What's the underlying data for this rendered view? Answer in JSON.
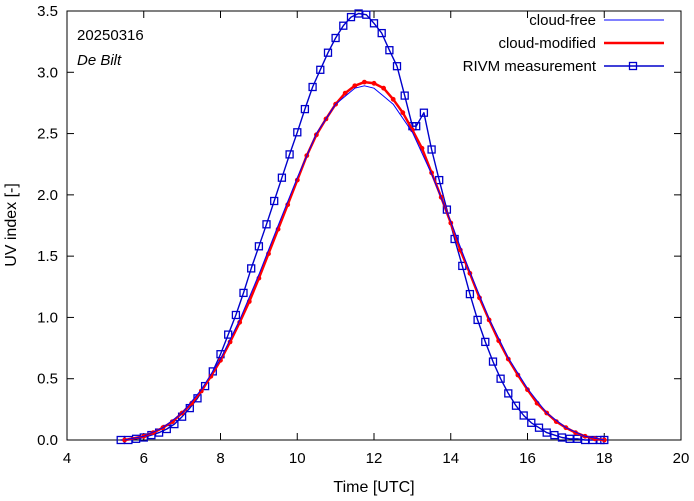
{
  "chart_data": {
    "type": "line",
    "title": "",
    "xlabel": "Time  [UTC]",
    "ylabel": "UV index  [-]",
    "xlim": [
      4,
      20
    ],
    "ylim": [
      0,
      3.5
    ],
    "xticks": [
      "4",
      "6",
      "8",
      "10",
      "12",
      "14",
      "16",
      "18",
      "20"
    ],
    "yticks": [
      "0.0",
      "0.5",
      "1.0",
      "1.5",
      "2.0",
      "2.5",
      "3.0",
      "3.5"
    ],
    "grid": false,
    "legend_position": "top-right",
    "annotations": {
      "date": "20250316",
      "location": "De Bilt"
    },
    "colors": {
      "cloud_free": "#0000ff",
      "cloud_modified": "#ff0000",
      "measurement": "#0000cc"
    },
    "series": [
      {
        "name": "cloud-free",
        "style": "line",
        "x": [
          5.5,
          6.0,
          6.5,
          7.0,
          7.5,
          8.0,
          8.5,
          9.0,
          9.5,
          10.0,
          10.5,
          11.0,
          11.5,
          11.75,
          12.0,
          12.5,
          13.0,
          13.5,
          14.0,
          14.5,
          15.0,
          15.5,
          16.0,
          16.5,
          17.0,
          17.5,
          18.0
        ],
        "values": [
          0.0,
          0.03,
          0.1,
          0.22,
          0.41,
          0.66,
          0.98,
          1.35,
          1.75,
          2.14,
          2.5,
          2.74,
          2.87,
          2.89,
          2.87,
          2.74,
          2.51,
          2.17,
          1.78,
          1.37,
          0.99,
          0.67,
          0.42,
          0.22,
          0.1,
          0.03,
          0.0
        ]
      },
      {
        "name": "cloud-modified",
        "style": "line-dots",
        "x": [
          5.5,
          6.0,
          6.25,
          6.5,
          6.75,
          7.0,
          7.25,
          7.5,
          7.75,
          8.0,
          8.25,
          8.5,
          8.75,
          9.0,
          9.25,
          9.5,
          9.75,
          10.0,
          10.25,
          10.5,
          10.75,
          11.0,
          11.25,
          11.5,
          11.75,
          12.0,
          12.25,
          12.5,
          12.75,
          13.0,
          13.25,
          13.5,
          13.75,
          14.0,
          14.25,
          14.5,
          14.75,
          15.0,
          15.25,
          15.5,
          15.75,
          16.0,
          16.25,
          16.5,
          16.75,
          17.0,
          17.25,
          17.5,
          17.75,
          18.0
        ],
        "values": [
          0.0,
          0.03,
          0.06,
          0.1,
          0.15,
          0.22,
          0.3,
          0.4,
          0.52,
          0.65,
          0.8,
          0.96,
          1.13,
          1.32,
          1.52,
          1.72,
          1.92,
          2.12,
          2.32,
          2.49,
          2.62,
          2.74,
          2.83,
          2.89,
          2.92,
          2.91,
          2.87,
          2.78,
          2.67,
          2.53,
          2.38,
          2.18,
          1.98,
          1.77,
          1.55,
          1.36,
          1.16,
          0.98,
          0.81,
          0.66,
          0.53,
          0.41,
          0.3,
          0.22,
          0.15,
          0.1,
          0.06,
          0.03,
          0.01,
          0.0
        ]
      },
      {
        "name": "RIVM measurement",
        "style": "line-squares",
        "x": [
          5.4,
          5.6,
          5.8,
          6.0,
          6.2,
          6.4,
          6.6,
          6.8,
          7.0,
          7.2,
          7.4,
          7.6,
          7.8,
          8.0,
          8.2,
          8.4,
          8.6,
          8.8,
          9.0,
          9.2,
          9.4,
          9.6,
          9.8,
          10.0,
          10.2,
          10.4,
          10.6,
          10.8,
          11.0,
          11.2,
          11.4,
          11.6,
          11.8,
          12.0,
          12.2,
          12.4,
          12.6,
          12.8,
          13.0,
          13.1,
          13.3,
          13.5,
          13.7,
          13.9,
          14.1,
          14.3,
          14.5,
          14.7,
          14.9,
          15.1,
          15.3,
          15.5,
          15.7,
          15.9,
          16.1,
          16.3,
          16.5,
          16.7,
          16.9,
          17.1,
          17.3,
          17.5,
          17.7,
          17.9,
          18.0
        ],
        "values": [
          0.0,
          0.0,
          0.01,
          0.02,
          0.04,
          0.06,
          0.09,
          0.13,
          0.19,
          0.26,
          0.34,
          0.44,
          0.56,
          0.7,
          0.86,
          1.02,
          1.2,
          1.4,
          1.58,
          1.76,
          1.95,
          2.14,
          2.33,
          2.51,
          2.7,
          2.88,
          3.02,
          3.16,
          3.28,
          3.38,
          3.45,
          3.48,
          3.47,
          3.4,
          3.32,
          3.18,
          3.05,
          2.81,
          2.56,
          2.56,
          2.67,
          2.37,
          2.12,
          1.88,
          1.64,
          1.42,
          1.19,
          0.98,
          0.8,
          0.64,
          0.5,
          0.38,
          0.28,
          0.2,
          0.14,
          0.1,
          0.06,
          0.04,
          0.02,
          0.01,
          0.01,
          0.0,
          0.0,
          0.0,
          0.0
        ]
      }
    ]
  }
}
